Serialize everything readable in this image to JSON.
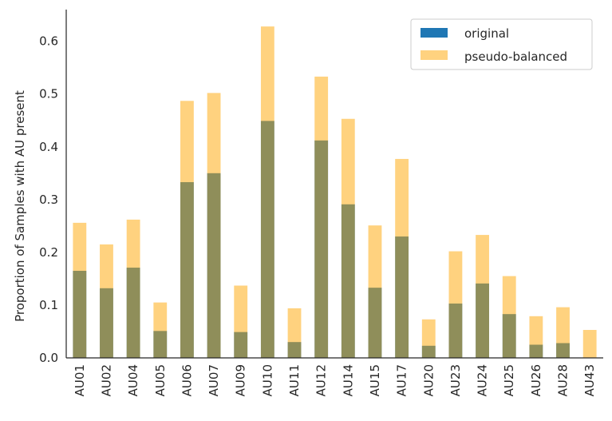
{
  "chart_data": {
    "type": "bar",
    "title": "",
    "xlabel": "",
    "ylabel": "Proportion of Samples with AU present",
    "categories": [
      "AU01",
      "AU02",
      "AU04",
      "AU05",
      "AU06",
      "AU07",
      "AU09",
      "AU10",
      "AU11",
      "AU12",
      "AU14",
      "AU15",
      "AU17",
      "AU20",
      "AU23",
      "AU24",
      "AU25",
      "AU26",
      "AU28",
      "AU43"
    ],
    "series": [
      {
        "name": "original",
        "color": "#1f77b4",
        "values": [
          0.165,
          0.132,
          0.171,
          0.051,
          0.333,
          0.35,
          0.049,
          0.449,
          0.03,
          0.412,
          0.291,
          0.133,
          0.23,
          0.023,
          0.103,
          0.141,
          0.083,
          0.025,
          0.028,
          0.0
        ]
      },
      {
        "name": "pseudo-balanced",
        "color": "#ffa500",
        "opacity": 0.5,
        "values": [
          0.256,
          0.215,
          0.262,
          0.105,
          0.487,
          0.502,
          0.137,
          0.628,
          0.094,
          0.533,
          0.453,
          0.251,
          0.377,
          0.073,
          0.202,
          0.233,
          0.155,
          0.079,
          0.096,
          0.053
        ]
      }
    ],
    "ylim": [
      0,
      0.66
    ],
    "yticks": [
      "0.0",
      "0.1",
      "0.2",
      "0.3",
      "0.4",
      "0.5",
      "0.6"
    ],
    "ytick_values": [
      0,
      0.1,
      0.2,
      0.3,
      0.4,
      0.5,
      0.6
    ],
    "legend_position": "top-right",
    "grid": false
  }
}
